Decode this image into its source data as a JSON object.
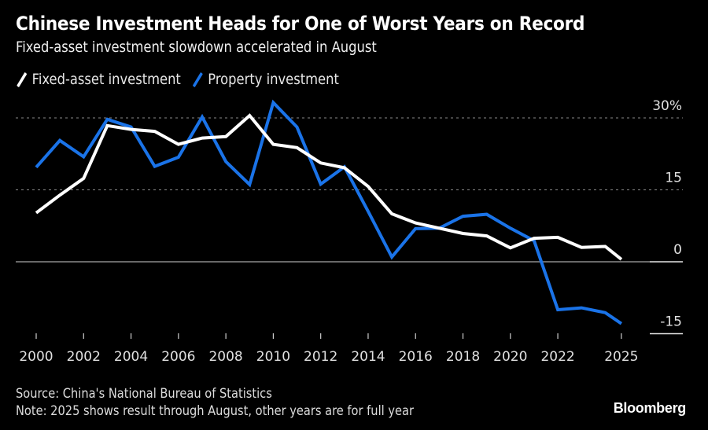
{
  "header": {
    "title": "Chinese Investment Heads for One of Worst Years on Record",
    "subtitle": "Fixed-asset investment slowdown accelerated in August"
  },
  "legend": [
    {
      "label": "Fixed-asset investment",
      "color": "#ffffff"
    },
    {
      "label": "Property investment",
      "color": "#1a73e8"
    }
  ],
  "footer": {
    "source": "Source: China's National Bureau of Statistics",
    "note": "Note: 2025 shows result through August, other years are for full year",
    "brand": "Bloomberg"
  },
  "chart_data": {
    "type": "line",
    "title": "Chinese Investment Heads for One of Worst Years on Record",
    "subtitle": "Fixed-asset investment slowdown accelerated in August",
    "xlabel": "",
    "ylabel": "",
    "x": [
      2000,
      2001,
      2002,
      2003,
      2004,
      2005,
      2006,
      2007,
      2008,
      2009,
      2010,
      2011,
      2012,
      2013,
      2014,
      2015,
      2016,
      2017,
      2018,
      2019,
      2020,
      2021,
      2022,
      2023,
      2024,
      2025
    ],
    "x_tick_labels": [
      "2000",
      "2002",
      "2004",
      "2006",
      "2008",
      "2010",
      "2012",
      "2014",
      "2016",
      "2018",
      "2020",
      "2022",
      "2025"
    ],
    "x_ticks": [
      2000,
      2002,
      2004,
      2006,
      2008,
      2010,
      2012,
      2014,
      2016,
      2018,
      2020,
      2022,
      2025
    ],
    "y_ticks": [
      30,
      15,
      0,
      -15
    ],
    "y_tick_labels": [
      "30%",
      "15",
      "0",
      "-15"
    ],
    "ylim": [
      -16,
      34
    ],
    "grid": true,
    "legend_position": "top-left",
    "y_axis_side": "right",
    "series": [
      {
        "name": "Fixed-asset investment",
        "color": "#ffffff",
        "values": [
          10.2,
          13.9,
          17.4,
          28.4,
          27.6,
          27.2,
          24.5,
          25.8,
          26.1,
          30.5,
          24.5,
          23.8,
          20.6,
          19.6,
          15.7,
          10.0,
          8.1,
          7.0,
          5.9,
          5.4,
          2.9,
          4.9,
          5.1,
          3.0,
          3.2,
          0.5
        ]
      },
      {
        "name": "Property investment",
        "color": "#1a73e8",
        "values": [
          19.7,
          25.3,
          21.9,
          29.7,
          28.1,
          19.9,
          21.8,
          30.2,
          20.9,
          16.1,
          33.2,
          28.1,
          16.2,
          19.8,
          10.5,
          1.0,
          6.9,
          7.0,
          9.5,
          9.9,
          7.0,
          4.4,
          -10.0,
          -9.6,
          -10.6,
          -12.9
        ]
      }
    ]
  }
}
